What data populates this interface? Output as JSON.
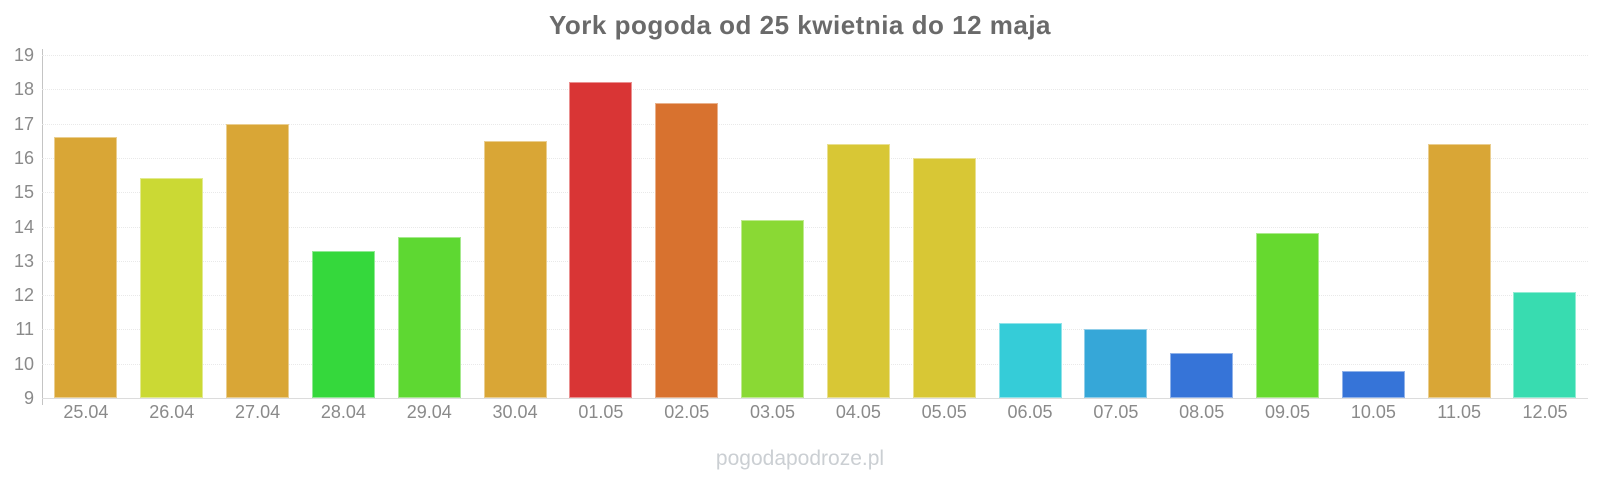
{
  "title": "York pogoda od 25 kwietnia do 12 maja",
  "watermark": "pogodapodroze.pl",
  "colors": {
    "background": "#ffffff",
    "title_text": "#6a6a6a",
    "axis_label_text": "#8a8a8a",
    "axis_line": "#c4c4c4",
    "gridline": "#e9e9e9",
    "watermark_text": "#cbcfd3"
  },
  "chart_data": {
    "type": "bar",
    "title": "York pogoda od 25 kwietnia do 12 maja",
    "xlabel": "",
    "ylabel": "",
    "ylim": [
      9,
      19
    ],
    "yticks": [
      9,
      10,
      11,
      12,
      13,
      14,
      15,
      16,
      17,
      18,
      19
    ],
    "grid": true,
    "legend": "none",
    "categories": [
      "25.04",
      "26.04",
      "27.04",
      "28.04",
      "29.04",
      "30.04",
      "01.05",
      "02.05",
      "03.05",
      "04.05",
      "05.05",
      "06.05",
      "07.05",
      "08.05",
      "09.05",
      "10.05",
      "11.05",
      "12.05"
    ],
    "values": [
      16.6,
      15.4,
      17.0,
      13.3,
      13.7,
      16.5,
      18.2,
      17.6,
      14.2,
      16.4,
      16.0,
      11.2,
      11.0,
      10.3,
      13.8,
      9.8,
      16.4,
      12.1
    ],
    "bar_colors": [
      "#d9a636",
      "#cbd934",
      "#d9a636",
      "#35d83c",
      "#5ed832",
      "#d9a636",
      "#d93535",
      "#d8722f",
      "#8ad934",
      "#d8c735",
      "#d8c735",
      "#35ccd8",
      "#36a7d8",
      "#3674d8",
      "#66d92f",
      "#3674d8",
      "#d9a636",
      "#38dcb0"
    ],
    "series_note": "daily temperature in °C, color-coded by warmth"
  }
}
